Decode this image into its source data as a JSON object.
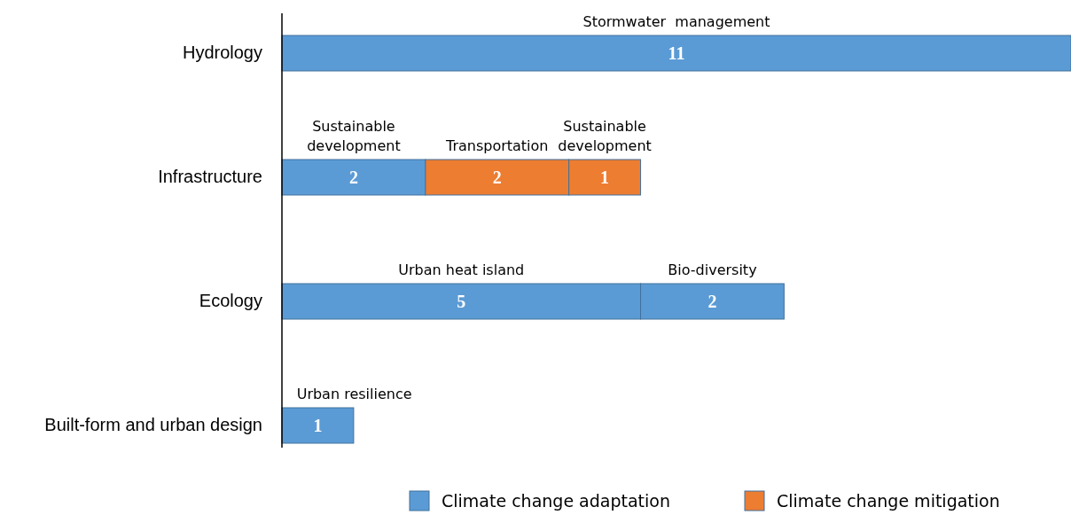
{
  "chart_data": {
    "type": "bar",
    "orientation": "horizontal",
    "stacked": true,
    "data_labels": true,
    "legend": "bottom",
    "categories": [
      "Hydrology",
      "Infrastructure",
      "Ecology",
      "Built-form and urban design"
    ],
    "series": [
      {
        "name": "Climate change adaptation",
        "color": "#5b9bd5",
        "values": [
          11,
          2,
          5,
          1
        ]
      },
      {
        "name": "Climate change mitigation",
        "color": "#ed7d31",
        "values": [
          null,
          2,
          null,
          null
        ]
      },
      {
        "color": "#5b9bd5",
        "values": [
          null,
          null,
          2,
          null
        ]
      },
      {
        "color": "#ed7d31",
        "values": [
          null,
          1,
          null,
          null
        ]
      }
    ],
    "annotations": [
      "Stormwater  management",
      "Sustainable\ndevelopment",
      "Transportation",
      "Sustainable\ndevelopment",
      "Urban heat island",
      "Bio-diversity",
      "Urban resilience"
    ]
  }
}
